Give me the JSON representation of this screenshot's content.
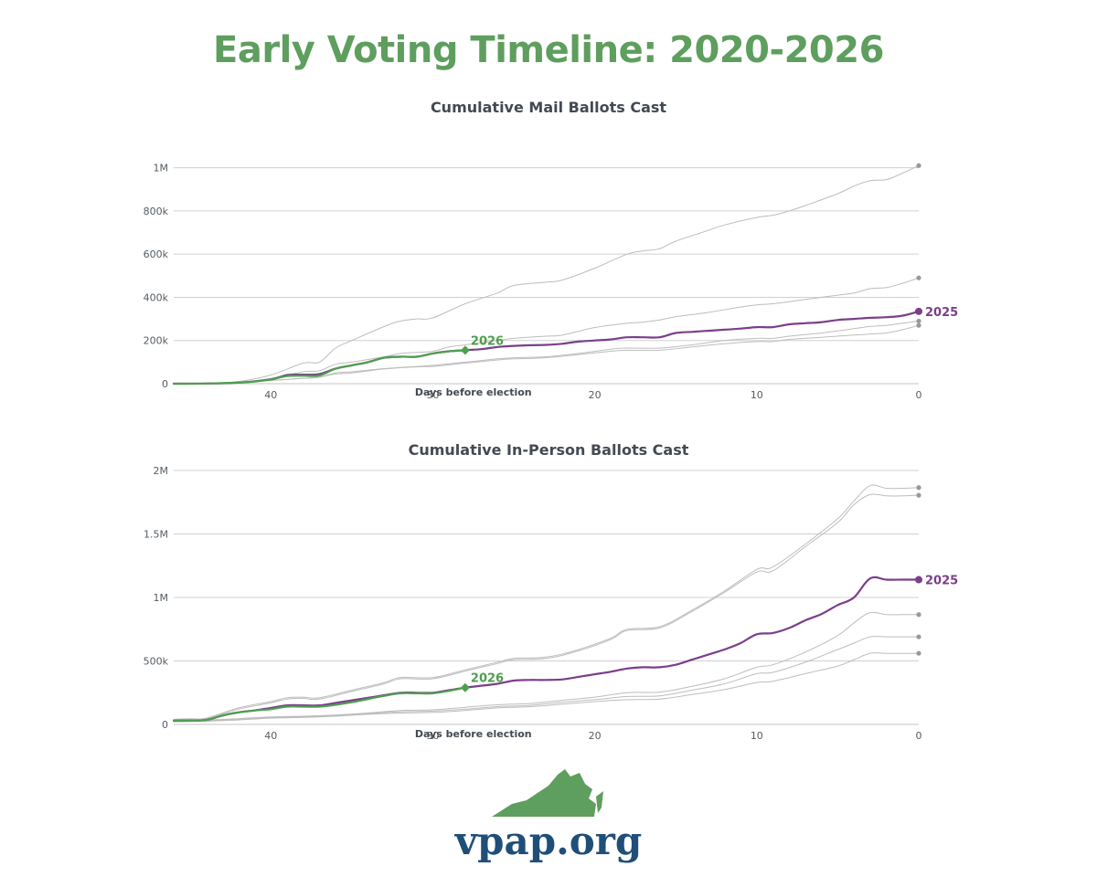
{
  "page": {
    "title": "Early Voting Timeline: 2020-2026",
    "logo_text": "vpap.org"
  },
  "colors": {
    "title_green": "#5e9e5e",
    "current_2026": "#4e9e4e",
    "highlight_2025": "#7a3f8a",
    "other_years": "#bdbdbd",
    "end_dot": "#999999",
    "logo_blue": "#1f4e79"
  },
  "chart_data": [
    {
      "id": "mail",
      "type": "line",
      "title": "Cumulative Mail Ballots Cast",
      "xlabel": "Days before election",
      "ylabel": "",
      "xlim": [
        46,
        0
      ],
      "ylim": [
        0,
        1100000
      ],
      "x_ticks": [
        40,
        30,
        20,
        10,
        0
      ],
      "y_ticks": [
        0,
        200000,
        400000,
        600000,
        800000,
        1000000
      ],
      "y_tick_labels": [
        "0",
        "200k",
        "400k",
        "600k",
        "800k",
        "1M"
      ],
      "grid": true,
      "series": [
        {
          "label": "",
          "role": "other",
          "x": [
            46,
            44,
            42,
            40,
            38,
            37,
            36,
            35,
            33,
            32,
            31,
            30,
            28,
            26,
            25,
            23,
            22,
            20,
            18,
            17,
            16,
            15,
            13,
            12,
            10,
            9,
            8,
            7,
            5,
            4,
            3,
            2,
            1,
            0
          ],
          "y": [
            0,
            1000,
            10000,
            40000,
            95000,
            100000,
            165000,
            200000,
            265000,
            290000,
            300000,
            305000,
            370000,
            420000,
            455000,
            470000,
            480000,
            535000,
            600000,
            615000,
            625000,
            660000,
            710000,
            735000,
            770000,
            780000,
            800000,
            825000,
            880000,
            915000,
            940000,
            945000,
            975000,
            1010000
          ]
        },
        {
          "label": "",
          "role": "other",
          "x": [
            46,
            44,
            42,
            40,
            38,
            37,
            36,
            35,
            33,
            32,
            31,
            30,
            29,
            28,
            26,
            25,
            23,
            22,
            20,
            18,
            17,
            16,
            15,
            13,
            11,
            10,
            9,
            8,
            7,
            5,
            4,
            3,
            2,
            1,
            0
          ],
          "y": [
            0,
            1000,
            5000,
            25000,
            55000,
            60000,
            90000,
            100000,
            125000,
            140000,
            145000,
            150000,
            170000,
            180000,
            200000,
            210000,
            220000,
            225000,
            260000,
            280000,
            285000,
            295000,
            310000,
            330000,
            355000,
            365000,
            370000,
            380000,
            390000,
            410000,
            420000,
            440000,
            445000,
            465000,
            490000
          ]
        },
        {
          "label": "",
          "role": "other",
          "x": [
            46,
            44,
            42,
            40,
            38,
            37,
            36,
            35,
            33,
            31,
            30,
            28,
            26,
            25,
            23,
            21,
            19,
            18,
            16,
            14,
            12,
            10,
            9,
            8,
            6,
            4,
            3,
            2,
            1,
            0
          ],
          "y": [
            0,
            1000,
            5000,
            15000,
            25000,
            30000,
            50000,
            55000,
            70000,
            80000,
            85000,
            100000,
            115000,
            120000,
            125000,
            140000,
            160000,
            165000,
            165000,
            180000,
            200000,
            210000,
            210000,
            220000,
            235000,
            255000,
            265000,
            270000,
            280000,
            290000
          ]
        },
        {
          "label": "",
          "role": "other",
          "x": [
            46,
            44,
            42,
            40,
            38,
            37,
            36,
            35,
            33,
            31,
            30,
            28,
            26,
            25,
            23,
            21,
            19,
            18,
            16,
            14,
            12,
            10,
            9,
            8,
            6,
            4,
            3,
            2,
            1,
            0
          ],
          "y": [
            0,
            1000,
            5000,
            15000,
            25000,
            30000,
            45000,
            50000,
            68000,
            78000,
            80000,
            95000,
            110000,
            115000,
            120000,
            135000,
            150000,
            155000,
            155000,
            170000,
            185000,
            195000,
            195000,
            205000,
            215000,
            225000,
            230000,
            235000,
            250000,
            270000
          ]
        },
        {
          "label": "2025",
          "role": "highlight",
          "x": [
            46,
            44,
            42,
            40,
            39,
            38,
            37,
            36,
            35,
            34,
            33,
            32,
            31,
            30,
            29,
            28,
            27,
            26,
            25,
            24,
            23,
            22,
            21,
            20,
            19,
            18,
            17,
            16,
            15,
            14,
            13,
            12,
            11,
            10,
            9,
            8,
            7,
            6,
            5,
            4,
            3,
            2,
            1,
            0
          ],
          "y": [
            0,
            1000,
            5000,
            20000,
            40000,
            42000,
            45000,
            70000,
            85000,
            100000,
            120000,
            125000,
            125000,
            140000,
            150000,
            155000,
            160000,
            170000,
            175000,
            178000,
            180000,
            185000,
            195000,
            200000,
            205000,
            215000,
            215000,
            215000,
            235000,
            240000,
            245000,
            250000,
            255000,
            262000,
            262000,
            275000,
            280000,
            285000,
            295000,
            300000,
            305000,
            308000,
            315000,
            335000
          ]
        },
        {
          "label": "2026",
          "role": "current",
          "x": [
            46,
            44,
            42,
            41,
            40,
            39,
            38,
            37,
            36,
            35,
            34,
            33,
            32,
            31,
            30,
            29,
            28
          ],
          "y": [
            0,
            1000,
            5000,
            10000,
            20000,
            35000,
            37000,
            38000,
            70000,
            85000,
            100000,
            120000,
            125000,
            125000,
            140000,
            150000,
            155000
          ]
        }
      ]
    },
    {
      "id": "inperson",
      "type": "line",
      "title": "Cumulative In-Person Ballots Cast",
      "xlabel": "Days before election",
      "ylabel": "",
      "xlim": [
        46,
        0
      ],
      "ylim": [
        0,
        2000000
      ],
      "x_ticks": [
        40,
        30,
        20,
        10,
        0
      ],
      "y_ticks": [
        0,
        500000,
        1000000,
        1500000,
        2000000
      ],
      "y_tick_labels": [
        "0",
        "500k",
        "1M",
        "1.5M",
        "2M"
      ],
      "grid": true,
      "series": [
        {
          "label": "",
          "role": "other",
          "x": [
            46,
            45,
            44,
            42,
            40,
            39,
            38,
            37,
            35,
            33,
            32,
            30,
            28,
            26,
            25,
            23,
            21,
            19,
            18,
            16,
            14,
            12,
            10,
            9,
            7,
            5,
            4,
            3,
            2,
            1,
            0
          ],
          "y": [
            40000,
            45000,
            50000,
            130000,
            180000,
            210000,
            215000,
            210000,
            270000,
            330000,
            370000,
            370000,
            430000,
            490000,
            520000,
            530000,
            590000,
            680000,
            750000,
            770000,
            900000,
            1050000,
            1220000,
            1240000,
            1420000,
            1620000,
            1760000,
            1880000,
            1860000,
            1860000,
            1865000
          ]
        },
        {
          "label": "",
          "role": "other",
          "x": [
            46,
            45,
            44,
            42,
            40,
            39,
            38,
            37,
            35,
            33,
            32,
            30,
            28,
            26,
            25,
            23,
            21,
            19,
            18,
            16,
            14,
            12,
            10,
            9,
            7,
            5,
            4,
            3,
            2,
            1,
            0
          ],
          "y": [
            35000,
            40000,
            45000,
            120000,
            170000,
            200000,
            205000,
            200000,
            260000,
            320000,
            360000,
            360000,
            420000,
            480000,
            510000,
            520000,
            580000,
            670000,
            740000,
            760000,
            890000,
            1040000,
            1200000,
            1210000,
            1400000,
            1590000,
            1730000,
            1810000,
            1800000,
            1800000,
            1805000
          ]
        },
        {
          "label": "",
          "role": "other",
          "x": [
            46,
            44,
            42,
            40,
            38,
            36,
            34,
            32,
            30,
            28,
            26,
            24,
            22,
            20,
            18,
            16,
            14,
            12,
            10,
            9,
            7,
            5,
            4,
            3,
            2,
            1,
            0
          ],
          "y": [
            30000,
            35000,
            45000,
            60000,
            65000,
            75000,
            90000,
            110000,
            115000,
            135000,
            155000,
            165000,
            190000,
            215000,
            250000,
            255000,
            300000,
            360000,
            450000,
            470000,
            570000,
            700000,
            800000,
            880000,
            865000,
            865000,
            865000
          ]
        },
        {
          "label": "",
          "role": "other",
          "x": [
            46,
            44,
            42,
            40,
            38,
            36,
            34,
            32,
            30,
            28,
            26,
            24,
            22,
            20,
            18,
            16,
            14,
            12,
            10,
            9,
            7,
            5,
            4,
            3,
            2,
            1,
            0
          ],
          "y": [
            25000,
            30000,
            40000,
            55000,
            60000,
            70000,
            85000,
            100000,
            105000,
            120000,
            140000,
            150000,
            175000,
            195000,
            220000,
            225000,
            270000,
            320000,
            400000,
            410000,
            490000,
            590000,
            640000,
            690000,
            690000,
            690000,
            690000
          ]
        },
        {
          "label": "",
          "role": "other",
          "x": [
            46,
            44,
            42,
            40,
            38,
            36,
            34,
            32,
            30,
            28,
            26,
            24,
            22,
            20,
            18,
            16,
            14,
            12,
            10,
            9,
            7,
            5,
            4,
            3,
            2,
            1,
            0
          ],
          "y": [
            20000,
            25000,
            35000,
            50000,
            55000,
            65000,
            80000,
            90000,
            95000,
            110000,
            130000,
            140000,
            160000,
            180000,
            195000,
            200000,
            235000,
            275000,
            330000,
            340000,
            400000,
            460000,
            510000,
            560000,
            560000,
            560000,
            560000
          ]
        },
        {
          "label": "2025",
          "role": "highlight",
          "x": [
            46,
            45,
            44,
            43,
            42,
            41,
            40,
            39,
            38,
            37,
            36,
            35,
            34,
            33,
            32,
            31,
            30,
            29,
            28,
            27,
            26,
            25,
            24,
            23,
            22,
            21,
            20,
            19,
            18,
            17,
            16,
            15,
            14,
            13,
            12,
            11,
            10,
            9,
            8,
            7,
            6,
            5,
            4,
            3,
            2,
            1,
            0
          ],
          "y": [
            30000,
            32000,
            35000,
            70000,
            95000,
            110000,
            130000,
            150000,
            150000,
            150000,
            170000,
            190000,
            210000,
            230000,
            250000,
            250000,
            250000,
            270000,
            290000,
            305000,
            320000,
            345000,
            350000,
            350000,
            355000,
            375000,
            395000,
            415000,
            440000,
            450000,
            450000,
            470000,
            510000,
            550000,
            590000,
            640000,
            710000,
            720000,
            760000,
            820000,
            870000,
            940000,
            1000000,
            1150000,
            1140000,
            1140000,
            1140000
          ]
        },
        {
          "label": "2026",
          "role": "current",
          "x": [
            46,
            45,
            44,
            43,
            42,
            41,
            40,
            39,
            38,
            37,
            36,
            35,
            34,
            33,
            32,
            31,
            30,
            29,
            28
          ],
          "y": [
            30000,
            32000,
            35000,
            70000,
            95000,
            110000,
            120000,
            140000,
            140000,
            140000,
            155000,
            175000,
            200000,
            225000,
            245000,
            245000,
            245000,
            265000,
            290000
          ]
        }
      ]
    }
  ]
}
